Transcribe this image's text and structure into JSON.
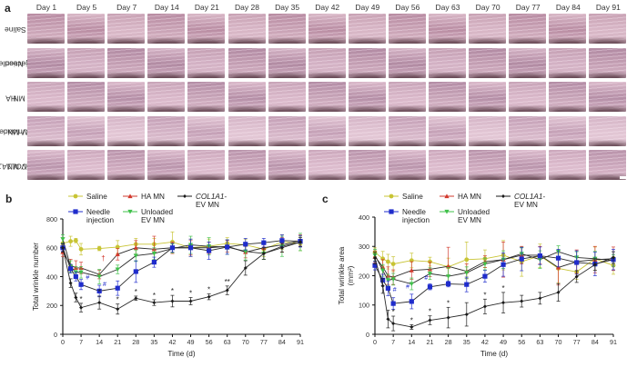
{
  "panels": {
    "a": "a",
    "b": "b",
    "c": "c"
  },
  "photo_grid": {
    "days": [
      "Day 1",
      "Day 5",
      "Day 7",
      "Day 14",
      "Day 21",
      "Day 28",
      "Day 35",
      "Day 42",
      "Day 49",
      "Day 56",
      "Day 63",
      "Day 70",
      "Day 77",
      "Day 84",
      "Day 91"
    ],
    "rows": [
      {
        "label_line1": "Saline",
        "label_line2": ""
      },
      {
        "label_line1": "Needle",
        "label_line2": "injection"
      },
      {
        "label_line1": "HA",
        "label_line2": "MN"
      },
      {
        "label_line1": "Unloaded",
        "label_line2": "EV MN"
      },
      {
        "label_line1": "COL1A1-",
        "label_line2": "EV MN"
      }
    ]
  },
  "chart_data": [
    {
      "type": "line",
      "panel": "b",
      "title": "",
      "xlabel": "Time (d)",
      "ylabel": "Total wrinkle number",
      "xlim": [
        0,
        91
      ],
      "ylim": [
        0,
        800
      ],
      "xticks": [
        0,
        7,
        14,
        21,
        28,
        35,
        42,
        49,
        56,
        63,
        70,
        77,
        84,
        91
      ],
      "yticks": [
        0,
        200,
        400,
        600,
        800
      ],
      "grid": false,
      "legend_position": "top",
      "series": [
        {
          "name": "Saline",
          "color": "#c8c434",
          "marker": "circle",
          "x": [
            0,
            3,
            5,
            7,
            14,
            21,
            28,
            35,
            42,
            49,
            56,
            63,
            70,
            77,
            84,
            91
          ],
          "y": [
            630,
            645,
            650,
            590,
            595,
            605,
            625,
            625,
            640,
            600,
            610,
            630,
            620,
            590,
            640,
            630
          ],
          "err": [
            40,
            35,
            15,
            40,
            15,
            45,
            40,
            40,
            70,
            60,
            50,
            40,
            40,
            50,
            50,
            50
          ]
        },
        {
          "name": "HA MN",
          "color": "#d23a2e",
          "marker": "triangle",
          "x": [
            0,
            3,
            5,
            7,
            14,
            21,
            28,
            35,
            42,
            49,
            56,
            63,
            70,
            77,
            84,
            91
          ],
          "y": [
            570,
            480,
            460,
            460,
            415,
            555,
            600,
            590,
            600,
            600,
            600,
            610,
            570,
            600,
            620,
            650
          ],
          "err": [
            30,
            40,
            50,
            40,
            30,
            40,
            50,
            90,
            40,
            50,
            40,
            40,
            40,
            40,
            50,
            40
          ],
          "annotation": {
            "x": 15.5,
            "y": 510,
            "text": "†"
          }
        },
        {
          "name": "COL1A1-EV MN",
          "color": "#1a1a1a",
          "marker": "diamond",
          "x": [
            0,
            3,
            5,
            7,
            14,
            21,
            28,
            35,
            42,
            49,
            56,
            63,
            70,
            77,
            84,
            91
          ],
          "y": [
            600,
            355,
            255,
            185,
            220,
            175,
            250,
            220,
            230,
            230,
            260,
            305,
            460,
            560,
            600,
            640
          ],
          "err": [
            30,
            30,
            30,
            30,
            45,
            35,
            15,
            20,
            40,
            25,
            20,
            30,
            50,
            40,
            30,
            30
          ],
          "annotation_points": [
            {
              "x": 7,
              "text": "*"
            },
            {
              "x": 14,
              "text": "*"
            },
            {
              "x": 21,
              "text": "*"
            },
            {
              "x": 28,
              "text": "*"
            },
            {
              "x": 35,
              "text": "*"
            },
            {
              "x": 42,
              "text": "*"
            },
            {
              "x": 49,
              "text": "*"
            },
            {
              "x": 56,
              "text": "*"
            },
            {
              "x": 63,
              "text": "**"
            }
          ]
        },
        {
          "name": "Needle injection",
          "color": "#1f2ccc",
          "marker": "square",
          "x": [
            0,
            3,
            5,
            7,
            14,
            21,
            28,
            35,
            42,
            49,
            56,
            63,
            70,
            77,
            84,
            91
          ],
          "y": [
            600,
            455,
            400,
            345,
            300,
            320,
            435,
            500,
            600,
            600,
            580,
            605,
            625,
            635,
            650,
            645
          ],
          "err": [
            25,
            30,
            30,
            35,
            40,
            50,
            75,
            35,
            30,
            60,
            60,
            50,
            40,
            30,
            40,
            40
          ],
          "annotation_points": [
            {
              "x": 9.5,
              "y": 370,
              "text": "#"
            },
            {
              "x": 16,
              "y": 320,
              "text": "#"
            }
          ]
        },
        {
          "name": "Unloaded EV MN",
          "color": "#3fc04a",
          "marker": "triangle-down",
          "x": [
            0,
            3,
            5,
            7,
            14,
            21,
            28,
            35,
            42,
            49,
            56,
            63,
            70,
            77,
            84,
            91
          ],
          "y": [
            660,
            470,
            430,
            430,
            400,
            450,
            545,
            560,
            595,
            620,
            610,
            605,
            575,
            560,
            610,
            640
          ],
          "err": [
            30,
            40,
            40,
            40,
            50,
            30,
            40,
            40,
            30,
            60,
            60,
            50,
            60,
            40,
            70,
            60
          ]
        }
      ],
      "legend": [
        "Saline",
        "HA MN",
        "COL1A1-EV MN",
        "Needle injection",
        "Unloaded EV MN"
      ]
    },
    {
      "type": "line",
      "panel": "c",
      "title": "",
      "xlabel": "Time (d)",
      "ylabel": "Total wrinkle area (mm²)",
      "ylabel_line1": "Total wrinkle area",
      "ylabel_line2": "(mm²)",
      "xlim": [
        0,
        91
      ],
      "ylim": [
        0,
        400
      ],
      "xticks": [
        0,
        7,
        14,
        21,
        28,
        35,
        42,
        49,
        56,
        63,
        70,
        77,
        84,
        91
      ],
      "yticks": [
        0,
        100,
        200,
        300,
        400
      ],
      "grid": false,
      "legend_position": "top",
      "series": [
        {
          "name": "Saline",
          "color": "#c8c434",
          "marker": "circle",
          "x": [
            0,
            3,
            5,
            7,
            14,
            21,
            28,
            35,
            42,
            49,
            56,
            63,
            70,
            77,
            84,
            91
          ],
          "y": [
            280,
            258,
            248,
            240,
            252,
            248,
            230,
            255,
            258,
            270,
            248,
            268,
            225,
            213,
            258,
            235
          ],
          "err": [
            15,
            25,
            25,
            25,
            25,
            15,
            30,
            60,
            30,
            50,
            50,
            40,
            50,
            25,
            40,
            30
          ]
        },
        {
          "name": "HA MN",
          "color": "#d23a2e",
          "marker": "triangle",
          "x": [
            0,
            3,
            5,
            7,
            14,
            21,
            28,
            35,
            42,
            49,
            56,
            63,
            70,
            77,
            84,
            91
          ],
          "y": [
            265,
            230,
            200,
            195,
            218,
            222,
            232,
            215,
            248,
            255,
            270,
            270,
            228,
            248,
            255,
            258
          ],
          "err": [
            20,
            25,
            30,
            25,
            30,
            25,
            65,
            25,
            20,
            60,
            30,
            30,
            60,
            40,
            45,
            40
          ]
        },
        {
          "name": "COL1A1-EV MN",
          "color": "#1a1a1a",
          "marker": "diamond",
          "x": [
            0,
            3,
            5,
            7,
            14,
            21,
            28,
            35,
            42,
            49,
            56,
            63,
            70,
            77,
            84,
            91
          ],
          "y": [
            260,
            165,
            52,
            37,
            25,
            48,
            57,
            68,
            95,
            108,
            113,
            123,
            143,
            197,
            238,
            262
          ],
          "err": [
            20,
            25,
            30,
            25,
            8,
            15,
            35,
            40,
            25,
            35,
            20,
            20,
            30,
            20,
            20,
            20
          ],
          "annotation_points": [
            {
              "x": 7,
              "text": "*"
            },
            {
              "x": 14,
              "text": "*"
            },
            {
              "x": 21,
              "text": "*"
            },
            {
              "x": 28,
              "text": "*"
            },
            {
              "x": 42,
              "text": "*"
            },
            {
              "x": 49,
              "text": "*"
            }
          ]
        },
        {
          "name": "Needle injection",
          "color": "#1f2ccc",
          "marker": "square",
          "x": [
            0,
            3,
            5,
            7,
            14,
            21,
            28,
            35,
            42,
            49,
            56,
            63,
            70,
            77,
            84,
            91
          ],
          "y": [
            235,
            185,
            157,
            105,
            112,
            162,
            172,
            170,
            198,
            238,
            257,
            268,
            260,
            245,
            240,
            255
          ],
          "err": [
            15,
            20,
            25,
            20,
            25,
            10,
            10,
            25,
            20,
            40,
            40,
            30,
            30,
            40,
            40,
            35
          ],
          "annotation_points": [
            {
              "x": 7.5,
              "y": 140,
              "text": "#"
            },
            {
              "x": 12.5,
              "y": 150,
              "text": "#"
            },
            {
              "x": 19.5,
              "y": 180,
              "text": "#"
            }
          ]
        },
        {
          "name": "Unloaded EV MN",
          "color": "#3fc04a",
          "marker": "triangle-down",
          "x": [
            0,
            3,
            5,
            7,
            14,
            21,
            28,
            35,
            42,
            49,
            56,
            63,
            70,
            77,
            84,
            91
          ],
          "y": [
            270,
            218,
            185,
            188,
            172,
            207,
            198,
            210,
            240,
            255,
            275,
            255,
            282,
            262,
            258,
            252
          ],
          "err": [
            20,
            20,
            20,
            20,
            20,
            20,
            30,
            20,
            20,
            30,
            20,
            30,
            20,
            20,
            25,
            20
          ]
        }
      ],
      "legend": [
        "Saline",
        "HA MN",
        "COL1A1-EV MN",
        "Needle injection",
        "Unloaded EV MN"
      ]
    }
  ],
  "legend_labels": {
    "saline": "Saline",
    "ha_mn": "HA MN",
    "col1a1_line1": "COL1A1-",
    "col1a1_line2": "EV MN",
    "needle_line1": "Needle",
    "needle_line2": "injection",
    "unloaded_line1": "Unloaded",
    "unloaded_line2": "EV MN"
  }
}
